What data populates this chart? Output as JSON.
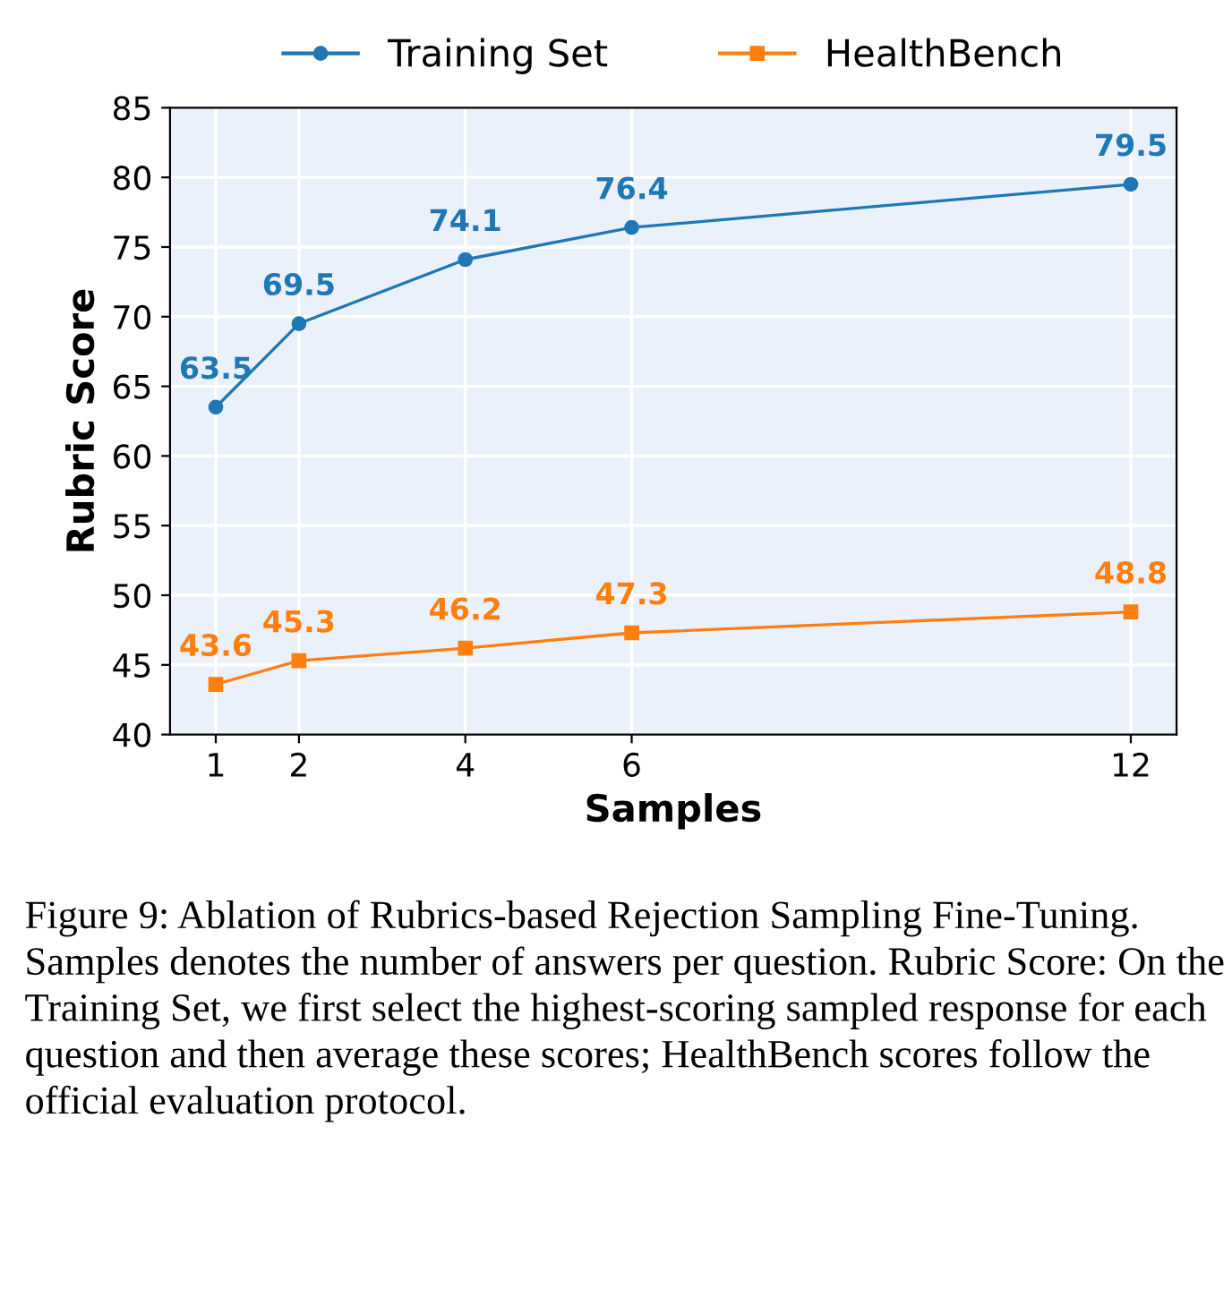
{
  "chart_data": {
    "type": "line",
    "xlabel": "Samples",
    "ylabel": "Rubric Score",
    "x": [
      1,
      2,
      4,
      6,
      12
    ],
    "series": [
      {
        "name": "Training Set",
        "color": "#1f77b4",
        "marker": "circle",
        "values": [
          63.5,
          69.5,
          74.1,
          76.4,
          79.5
        ]
      },
      {
        "name": "HealthBench",
        "color": "#ff7f0e",
        "marker": "square",
        "values": [
          43.6,
          45.3,
          46.2,
          47.3,
          48.8
        ]
      }
    ],
    "xlim": [
      0.45,
      12.55
    ],
    "xticks": [
      1,
      2,
      4,
      6,
      12
    ],
    "ylim": [
      40,
      85
    ],
    "yticks": [
      40,
      45,
      50,
      55,
      60,
      65,
      70,
      75,
      80,
      85
    ],
    "grid": true,
    "legend": "top",
    "data_labels": true,
    "line_style": "solid",
    "annotations": [
      "Figure 9: Ablation of Rubrics-based Rejection Sampling Fine-Tuning. Samples denotes the number of answers per question. Rubric Score: On the Training Set, we first select the highest-scoring sampled response for each question and then average these scores; HealthBench scores follow the official evaluation protocol."
    ]
  }
}
